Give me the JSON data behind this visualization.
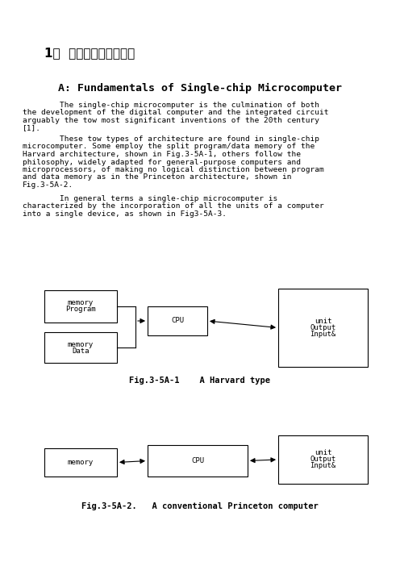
{
  "title_chinese": "1、  外文原文（复印件）",
  "title_english": "A: Fundamentals of Single-chip Microcomputer",
  "para1_lines": [
    "        The single-chip microcomputer is the culmination of both",
    "the development of the digital computer and the integrated circuit",
    "arguably the tow most significant inventions of the 20th century",
    "[1]."
  ],
  "para2_lines": [
    "        These tow types of architecture are found in single-chip",
    "microcomputer. Some employ the split program/data memory of the",
    "Harvard architecture, shown in Fig.3-5A-1, others follow the",
    "philosophy, widely adapted for general-purpose computers and",
    "microprocessors, of making no logical distinction between program",
    "and data memory as in the Princeton architecture, shown in",
    "Fig.3-5A-2."
  ],
  "para3_lines": [
    "        In general terms a single-chip microcomputer is",
    "characterized by the incorporation of all the units of a computer",
    "into a single device, as shown in Fig3-5A-3."
  ],
  "fig1_caption": "Fig.3-5A-1    A Harvard type",
  "fig2_caption": "Fig.3-5A-2.   A conventional Princeton computer",
  "bg_color": "#ffffff",
  "text_color": "#000000",
  "border_color": "#000000",
  "font_size_chinese_title": 11,
  "font_size_english_title": 9.5,
  "font_size_body": 6.8,
  "font_size_caption": 7.5,
  "font_size_box": 6.5
}
